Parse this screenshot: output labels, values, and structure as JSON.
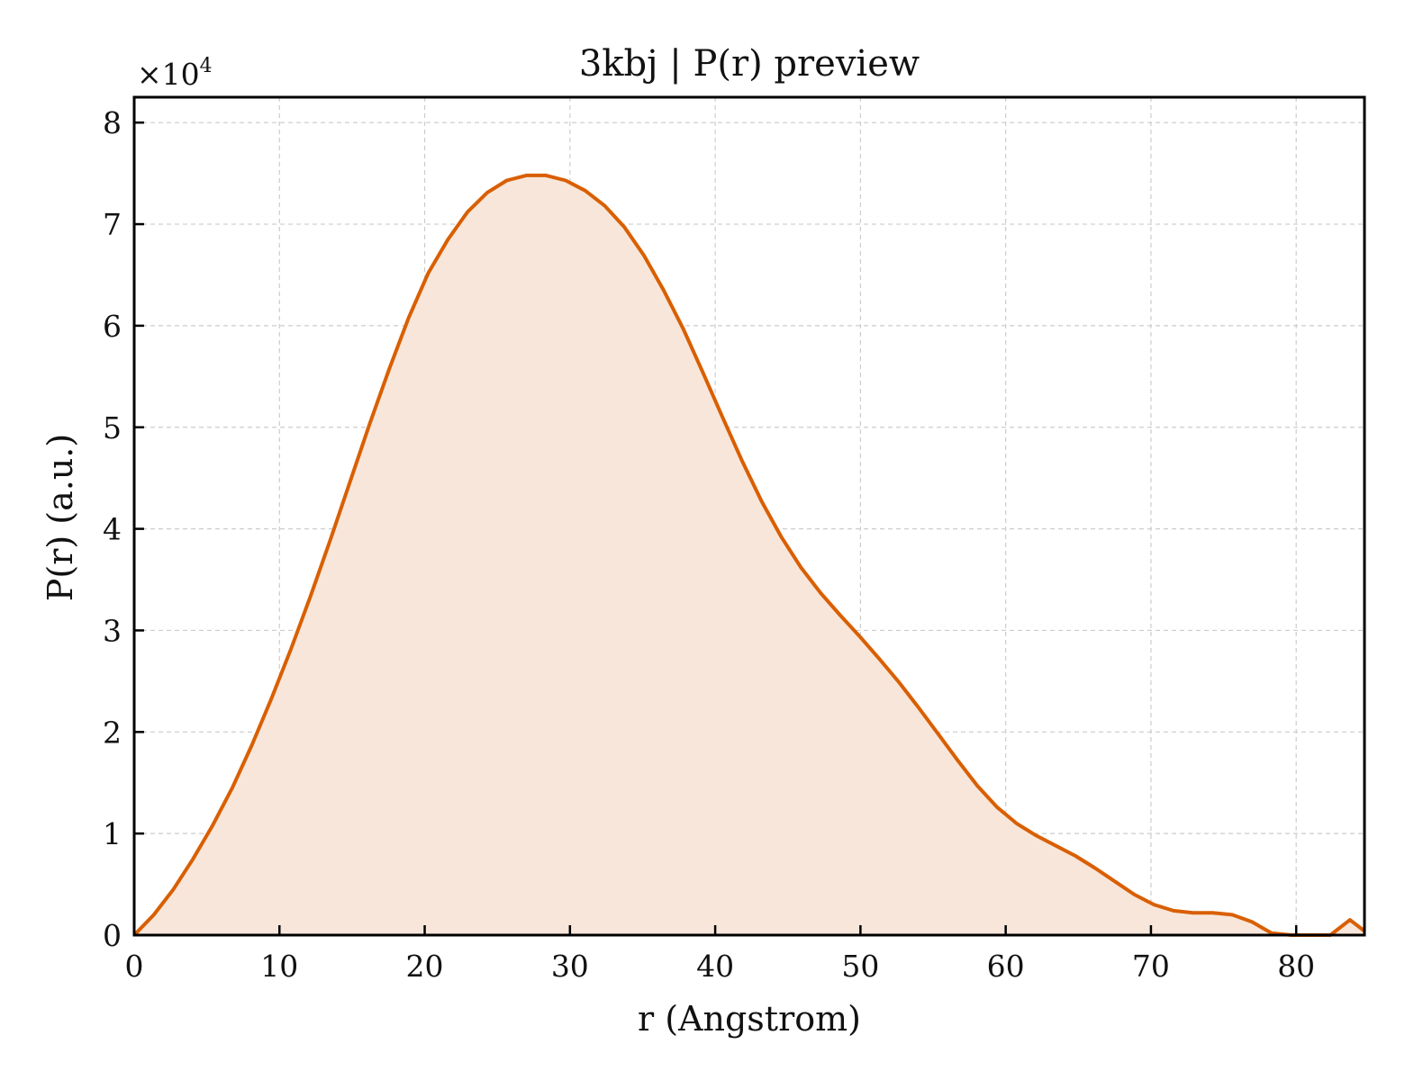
{
  "colors": {
    "line": "#d95f02",
    "fill": "#f8e6da",
    "grid": "#cccccc",
    "axis": "#000000"
  },
  "chart_data": {
    "type": "area",
    "title": "3kbj | P(r) preview",
    "xlabel": "r (Angstrom)",
    "ylabel": "P(r) (a.u.)",
    "y_multiplier_prefix": "×10",
    "y_multiplier_exp": "4",
    "y_scale": 10000,
    "xlim": [
      0,
      84.7
    ],
    "ylim": [
      0,
      82500
    ],
    "xticks": [
      0,
      10,
      20,
      30,
      40,
      50,
      60,
      70,
      80
    ],
    "yticks": [
      0,
      1,
      2,
      3,
      4,
      5,
      6,
      7,
      8
    ],
    "grid": true,
    "series": [
      {
        "x": [
          0,
          1.35,
          2.7,
          4.05,
          5.4,
          6.75,
          8.1,
          9.45,
          10.8,
          12.15,
          13.5,
          14.85,
          16.2,
          17.55,
          18.9,
          20.25,
          21.6,
          22.95,
          24.3,
          25.65,
          27.0,
          28.35,
          29.7,
          31.05,
          32.4,
          33.75,
          35.1,
          36.45,
          37.8,
          39.15,
          40.5,
          41.85,
          43.2,
          44.55,
          45.9,
          47.25,
          48.6,
          49.95,
          51.3,
          52.65,
          54.0,
          55.35,
          56.7,
          58.05,
          59.4,
          60.75,
          62.1,
          63.45,
          64.8,
          66.15,
          67.5,
          68.85,
          70.2,
          71.55,
          72.9,
          74.25,
          75.6,
          76.95,
          78.3,
          79.65,
          81.0,
          82.35,
          83.7,
          84.7
        ],
        "y": [
          0,
          2000,
          4500,
          7500,
          10800,
          14500,
          18700,
          23300,
          28200,
          33400,
          38900,
          44600,
          50300,
          55700,
          60800,
          65200,
          68500,
          71200,
          73100,
          74300,
          74800,
          74800,
          74300,
          73300,
          71800,
          69700,
          66900,
          63500,
          59700,
          55400,
          51000,
          46700,
          42700,
          39200,
          36200,
          33700,
          31500,
          29400,
          27200,
          24900,
          22400,
          19800,
          17200,
          14700,
          12600,
          11000,
          9800,
          8800,
          7800,
          6600,
          5300,
          4000,
          3000,
          2400,
          2200,
          2200,
          2000,
          1300,
          200,
          0,
          0,
          0,
          1500,
          400
        ]
      }
    ]
  }
}
